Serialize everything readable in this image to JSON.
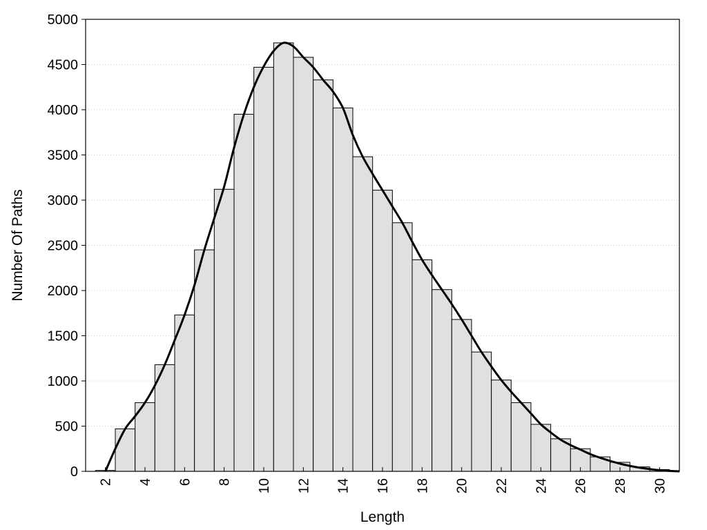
{
  "chart_data": {
    "type": "bar",
    "xlabel": "Length",
    "ylabel": "Number Of Paths",
    "ylim": [
      0,
      5000
    ],
    "xlim": [
      1,
      31
    ],
    "grid": "horizontal-dotted",
    "y_ticks": [
      0,
      500,
      1000,
      1500,
      2000,
      2500,
      3000,
      3500,
      4000,
      4500,
      5000
    ],
    "x_ticks": [
      2,
      4,
      6,
      8,
      10,
      12,
      14,
      16,
      18,
      20,
      22,
      24,
      26,
      28,
      30
    ],
    "bar_color": "#e0e0e0",
    "bar_edge_color": "#000000",
    "line_color": "#000000",
    "categories": [
      2,
      3,
      4,
      5,
      6,
      7,
      8,
      9,
      10,
      11,
      12,
      13,
      14,
      15,
      16,
      17,
      18,
      19,
      20,
      21,
      22,
      23,
      24,
      25,
      26,
      27,
      28,
      29,
      30
    ],
    "values": [
      10,
      470,
      760,
      1180,
      1730,
      2450,
      3120,
      3950,
      4470,
      4740,
      4580,
      4330,
      4020,
      3480,
      3110,
      2750,
      2340,
      2010,
      1680,
      1320,
      1010,
      760,
      520,
      360,
      250,
      160,
      100,
      50,
      20
    ],
    "curve": {
      "x": [
        2.0,
        2.5,
        3.0,
        3.5,
        4.0,
        4.5,
        5.0,
        5.5,
        6.0,
        6.5,
        7.0,
        7.5,
        8.0,
        8.5,
        9.0,
        9.5,
        10.0,
        10.5,
        11.0,
        11.5,
        12.0,
        12.5,
        13.0,
        13.5,
        14.0,
        14.5,
        15.0,
        15.5,
        16.0,
        16.5,
        17.0,
        17.5,
        18.0,
        18.5,
        19.0,
        19.5,
        20.0,
        20.5,
        21.0,
        21.5,
        22.0,
        22.5,
        23.0,
        23.5,
        24.0,
        24.5,
        25.0,
        25.5,
        26.0,
        26.5,
        27.0,
        27.5,
        28.0,
        28.5,
        29.0,
        29.5,
        30.0,
        30.5,
        31.0
      ],
      "y": [
        0,
        250,
        470,
        610,
        760,
        950,
        1180,
        1450,
        1730,
        2060,
        2450,
        2800,
        3150,
        3580,
        3950,
        4250,
        4480,
        4650,
        4740,
        4700,
        4580,
        4470,
        4330,
        4200,
        4020,
        3720,
        3480,
        3290,
        3110,
        2930,
        2750,
        2540,
        2340,
        2170,
        2010,
        1850,
        1680,
        1500,
        1320,
        1160,
        1010,
        880,
        760,
        640,
        520,
        430,
        350,
        290,
        240,
        190,
        150,
        115,
        85,
        60,
        40,
        25,
        12,
        5,
        0
      ]
    }
  }
}
